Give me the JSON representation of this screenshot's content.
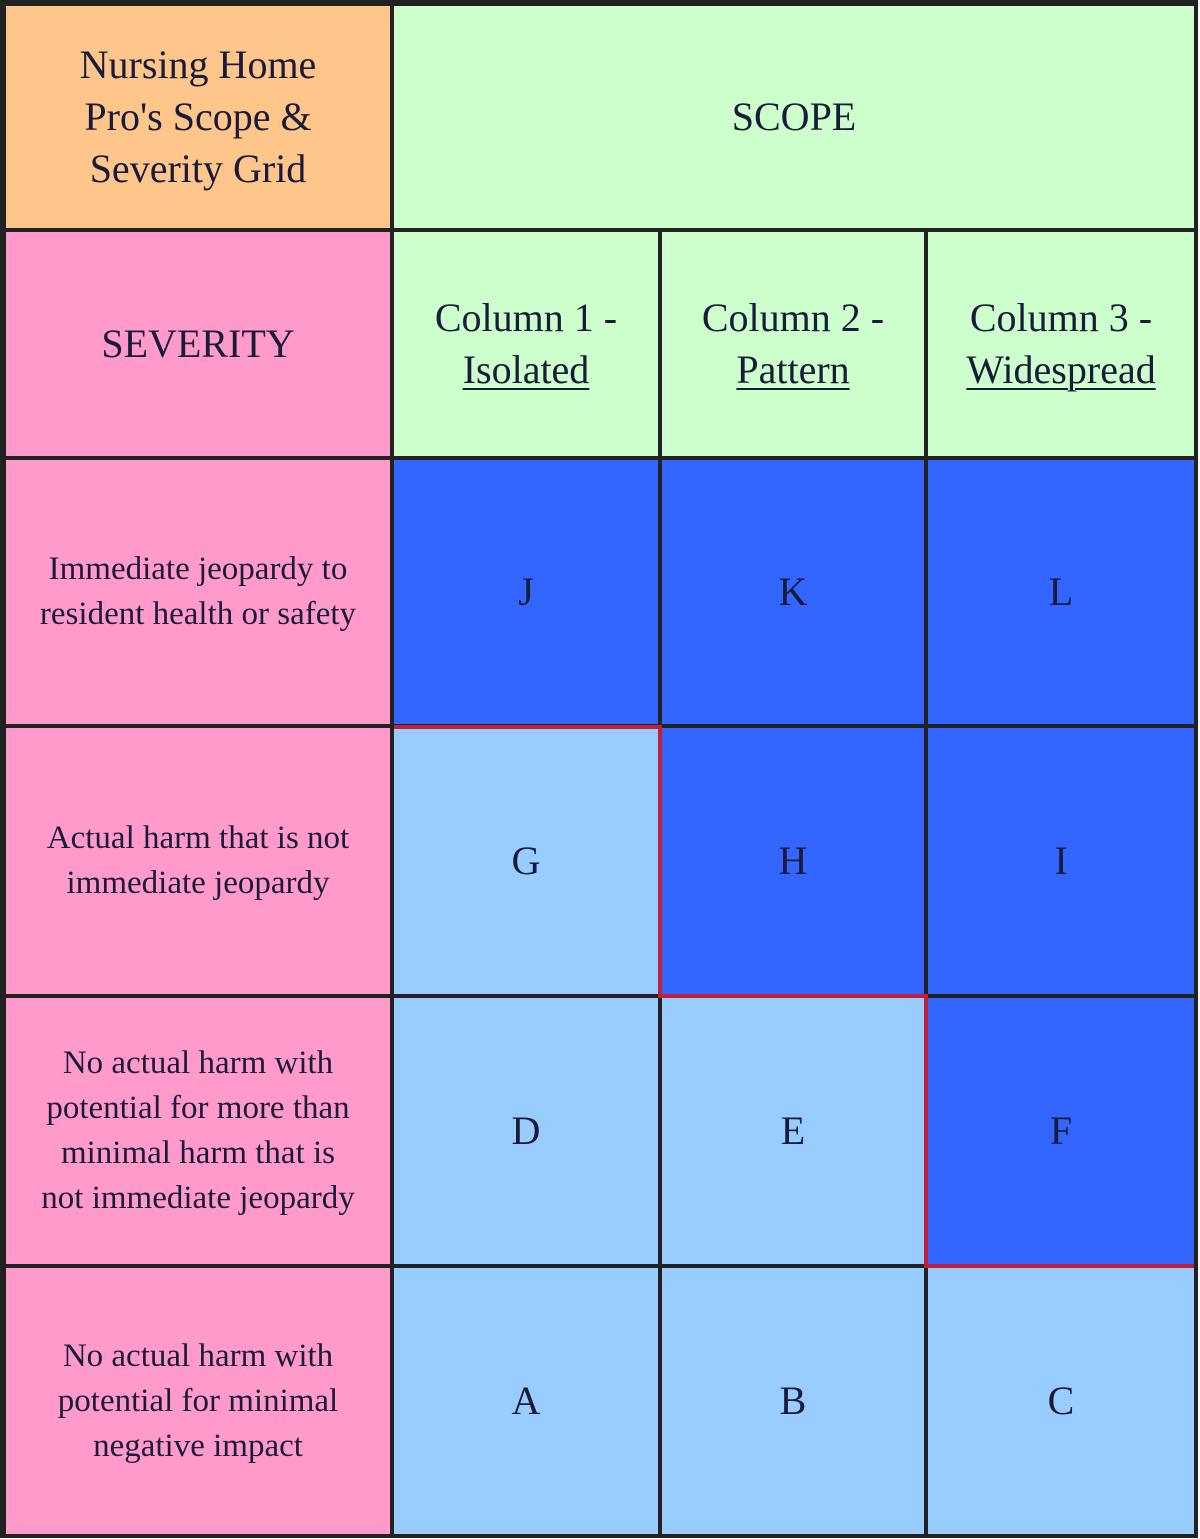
{
  "header": {
    "title_lines": [
      "Nursing Home",
      "Pro's Scope &",
      "Severity Grid"
    ],
    "title_color": "#ffc68c",
    "scope": "SCOPE",
    "scope_color": "#ccffcc"
  },
  "severity": {
    "label": "SEVERITY",
    "color": "#ff9acb"
  },
  "columns": [
    {
      "name": "Column 1 -",
      "type": "Isolated"
    },
    {
      "name": "Column 2 -",
      "type": "Pattern"
    },
    {
      "name": "Column 3 -",
      "type": "Widespread"
    }
  ],
  "rows": [
    {
      "label_lines": [
        "Immediate jeopardy to",
        "resident health or safety"
      ],
      "cells": [
        {
          "letter": "J",
          "color": "#3366ff"
        },
        {
          "letter": "K",
          "color": "#3366ff"
        },
        {
          "letter": "L",
          "color": "#3366ff"
        }
      ]
    },
    {
      "label_lines": [
        "Actual harm that is not",
        "immediate jeopardy"
      ],
      "cells": [
        {
          "letter": "G",
          "color": "#99ccff"
        },
        {
          "letter": "H",
          "color": "#3366ff"
        },
        {
          "letter": "I",
          "color": "#3366ff"
        }
      ]
    },
    {
      "label_lines": [
        "No actual harm with",
        "potential for more than",
        "minimal harm that is",
        "not immediate jeopardy"
      ],
      "cells": [
        {
          "letter": "D",
          "color": "#99ccff"
        },
        {
          "letter": "E",
          "color": "#99ccff"
        },
        {
          "letter": "F",
          "color": "#3366ff"
        }
      ]
    },
    {
      "label_lines": [
        "No actual harm with",
        "potential for minimal",
        "negative impact"
      ],
      "cells": [
        {
          "letter": "A",
          "color": "#99ccff"
        },
        {
          "letter": "B",
          "color": "#99ccff"
        },
        {
          "letter": "C",
          "color": "#99ccff"
        }
      ]
    }
  ]
}
